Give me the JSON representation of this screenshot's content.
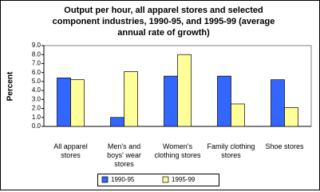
{
  "chart_data": {
    "type": "bar",
    "title": "Output per hour, all apparel stores and selected component industries, 1990-95, and 1995-99 (average annual rate of growth)",
    "y_label": "Percent",
    "categories": [
      "All apparel stores",
      "Men's and boys' wear stores",
      "Women's clothing stores",
      "Family clothing stores",
      "Shoe stores"
    ],
    "series": [
      {
        "name": "1990-95",
        "color": "#3366ff",
        "values": [
          5.4,
          1.0,
          5.6,
          5.6,
          5.2
        ]
      },
      {
        "name": "1995-99",
        "color": "#ffff99",
        "values": [
          5.2,
          6.1,
          8.0,
          2.5,
          2.1
        ]
      }
    ],
    "ylim": [
      0,
      9
    ],
    "yticks": [
      {
        "value": 0,
        "label": "0.0"
      },
      {
        "value": 1,
        "label": "1.0"
      },
      {
        "value": 2,
        "label": "2.0"
      },
      {
        "value": 3,
        "label": "3.0"
      },
      {
        "value": 4,
        "label": "4.0"
      },
      {
        "value": 5,
        "label": "5.0"
      },
      {
        "value": 6,
        "label": "6.0"
      },
      {
        "value": 7,
        "label": "7.0"
      },
      {
        "value": 8,
        "label": "8.0"
      },
      {
        "value": 9,
        "label": "9.0"
      }
    ],
    "grid": false,
    "legend": "bottom"
  }
}
